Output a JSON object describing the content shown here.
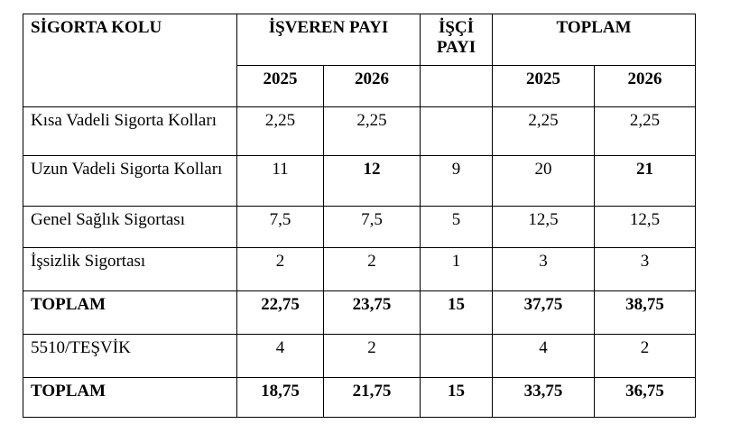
{
  "header": {
    "branch": "SİGORTA KOLU",
    "employer": "İŞVEREN PAYI",
    "employee": "İŞÇİ PAYI",
    "total": "TOPLAM",
    "years": [
      "2025",
      "2026",
      "2025",
      "2026"
    ]
  },
  "table": {
    "rows": [
      [
        "Kısa Vadeli Sigorta Kolları",
        "2,25",
        "2,25",
        null,
        "2,25",
        "2,25"
      ],
      [
        "Uzun Vadeli Sigorta Kolları",
        "11",
        "12",
        "9",
        "20",
        "21"
      ],
      [
        "Genel Sağlık Sigortası",
        "7,5",
        "7,5",
        "5",
        "12,5",
        "12,5"
      ],
      [
        "İşsizlik Sigortası",
        "2",
        "2",
        "1",
        "3",
        "3"
      ],
      [
        "TOPLAM",
        "22,75",
        "23,75",
        "15",
        "37,75",
        "38,75"
      ],
      [
        "5510/TEŞVİK",
        "4",
        "2",
        null,
        "4",
        "2"
      ],
      [
        "TOPLAM",
        "18,75",
        "21,75",
        "15",
        "33,75",
        "36,75"
      ]
    ]
  }
}
